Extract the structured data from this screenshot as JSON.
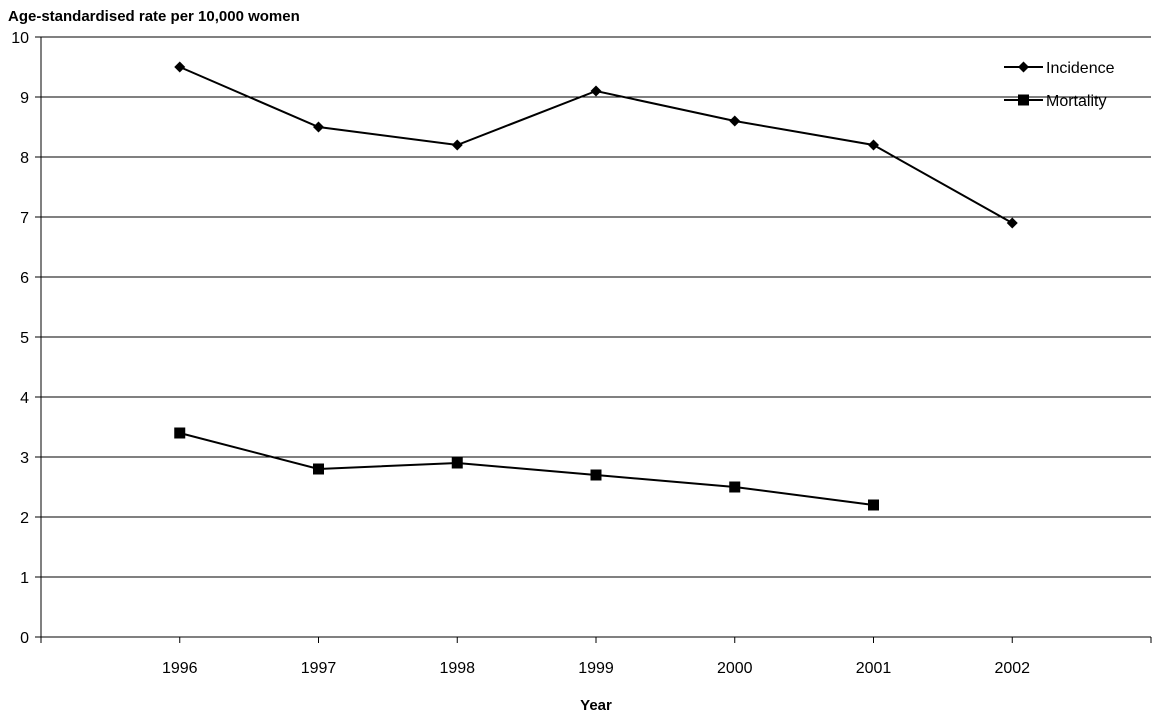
{
  "chart_data": {
    "type": "line",
    "title": "",
    "ylabel": "Age-standardised rate per 10,000 women",
    "xlabel": "Year",
    "categories": [
      "1996",
      "1997",
      "1998",
      "1999",
      "2000",
      "2001",
      "2002"
    ],
    "ylim": [
      0,
      10
    ],
    "yticks": [
      "0",
      "1",
      "2",
      "3",
      "4",
      "5",
      "6",
      "7",
      "8",
      "9",
      "10"
    ],
    "grid": true,
    "legend_position": "top-right",
    "series": [
      {
        "name": "Incidence",
        "marker": "diamond",
        "color": "#000000",
        "values": [
          9.5,
          8.5,
          8.2,
          9.1,
          8.6,
          8.2,
          6.9
        ]
      },
      {
        "name": "Mortality",
        "marker": "square",
        "color": "#000000",
        "values": [
          3.4,
          2.8,
          2.9,
          2.7,
          2.5,
          2.2,
          null
        ]
      }
    ]
  }
}
